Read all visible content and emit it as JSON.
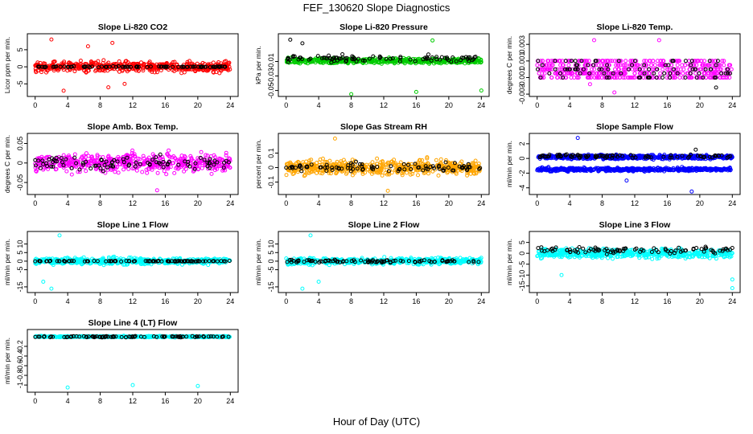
{
  "page": {
    "title": "FEF_130620  Slope Diagnostics",
    "xlabel": "Hour of Day (UTC)"
  },
  "chart_data": [
    {
      "type": "scatter",
      "title": "Slope Li-820 CO2",
      "ylabel": "Licor ppm per min.",
      "color": "#ff0000",
      "xlim": [
        0,
        24
      ],
      "ylim": [
        -8,
        9
      ],
      "yticks": [
        -5,
        0,
        5
      ],
      "xticks": [
        0,
        4,
        8,
        12,
        16,
        20,
        24
      ],
      "series": [
        {
          "name": "slopes",
          "color": "#ff0000",
          "center": 0,
          "spread": 3.2,
          "outliers": [
            [
              2,
              8
            ],
            [
              6.5,
              6
            ],
            [
              9.5,
              7
            ],
            [
              3.5,
              -7
            ],
            [
              9,
              -6
            ],
            [
              11,
              -5
            ]
          ]
        },
        {
          "name": "black",
          "color": "#000000",
          "center": 0,
          "spread": 0.3,
          "outliers": []
        }
      ]
    },
    {
      "type": "scatter",
      "title": "Slope Li-820 Pressure",
      "ylabel": "kPa per min.",
      "color": "#00cc00",
      "xlim": [
        0,
        24
      ],
      "ylim": [
        -0.055,
        0.025
      ],
      "yticks": [
        -0.05,
        -0.03,
        -0.01
      ],
      "xticks": [
        0,
        4,
        8,
        12,
        16,
        20,
        24
      ],
      "series": [
        {
          "name": "slopes",
          "color": "#00cc00",
          "center": -0.009,
          "spread": 0.008,
          "outliers": [
            [
              8,
              -0.055
            ],
            [
              16,
              -0.052
            ],
            [
              24,
              -0.05
            ],
            [
              18,
              0.019
            ]
          ]
        },
        {
          "name": "black",
          "color": "#000000",
          "center": -0.006,
          "spread": 0.009,
          "outliers": [
            [
              0.5,
              0.02
            ],
            [
              2,
              0.015
            ]
          ]
        }
      ]
    },
    {
      "type": "scatter",
      "title": "Slope Li-820 Temp.",
      "ylabel": "degrees C per min.",
      "color": "#ff00ff",
      "xlim": [
        0,
        24
      ],
      "ylim": [
        -0.003,
        0.004
      ],
      "yticks": [
        -0.003,
        -0.001,
        0.001,
        0.003
      ],
      "xticks": [
        0,
        4,
        8,
        12,
        16,
        20,
        24
      ],
      "series": [
        {
          "name": "slopes",
          "color": "#ff00ff",
          "center": 0,
          "spread": 0.0012,
          "levels": [
            -0.001,
            -0.0005,
            0,
            0.0005,
            0.001
          ],
          "outliers": [
            [
              7,
              0.0035
            ],
            [
              15,
              0.0035
            ],
            [
              9.5,
              -0.0028
            ],
            [
              6.5,
              -0.0018
            ]
          ]
        },
        {
          "name": "black",
          "color": "#000000",
          "center": 0,
          "spread": 0.0008,
          "levels": [
            -0.001,
            -0.0005,
            0,
            0.0005,
            0.001
          ],
          "outliers": [
            [
              22,
              -0.0022
            ]
          ]
        }
      ]
    },
    {
      "type": "scatter",
      "title": "Slope Amb. Box Temp.",
      "ylabel": "degrees C per min.",
      "color": "#ff00ff",
      "xlim": [
        0,
        24
      ],
      "ylim": [
        -0.075,
        0.07
      ],
      "yticks": [
        -0.05,
        0,
        0.05
      ],
      "xticks": [
        0,
        4,
        8,
        12,
        16,
        20,
        24
      ],
      "series": [
        {
          "name": "slopes",
          "color": "#ff00ff",
          "center": 0,
          "spread": 0.05,
          "outliers": [
            [
              15,
              -0.07
            ]
          ]
        },
        {
          "name": "black",
          "color": "#000000",
          "center": 0,
          "spread": 0.035,
          "outliers": []
        }
      ]
    },
    {
      "type": "scatter",
      "title": "Slope Gas Stream RH",
      "ylabel": "percent per min.",
      "color": "#ffa500",
      "xlim": [
        0,
        24
      ],
      "ylim": [
        -0.17,
        0.22
      ],
      "yticks": [
        -0.1,
        0,
        0.1
      ],
      "xticks": [
        0,
        4,
        8,
        12,
        16,
        20,
        24
      ],
      "series": [
        {
          "name": "slopes",
          "color": "#ffa500",
          "center": 0,
          "spread": 0.11,
          "outliers": [
            [
              6,
              0.2
            ],
            [
              12.5,
              -0.16
            ]
          ]
        },
        {
          "name": "black",
          "color": "#000000",
          "center": 0,
          "spread": 0.06,
          "outliers": []
        }
      ]
    },
    {
      "type": "scatter",
      "title": "Slope Sample Flow",
      "ylabel": "ml/min per min.",
      "color": "#0000ff",
      "xlim": [
        0,
        24
      ],
      "ylim": [
        -4.6,
        3.1
      ],
      "yticks": [
        -4,
        -2,
        0,
        2
      ],
      "xticks": [
        0,
        4,
        8,
        12,
        16,
        20,
        24
      ],
      "series": [
        {
          "name": "slopes-upper",
          "color": "#0000ff",
          "center": 0.2,
          "spread": 0.6,
          "outliers": [
            [
              5,
              2.8
            ],
            [
              19,
              -4.5
            ],
            [
              11,
              -3
            ]
          ]
        },
        {
          "name": "slopes-lower",
          "color": "#0000ff",
          "center": -1.5,
          "spread": 0.5,
          "outliers": []
        },
        {
          "name": "black",
          "color": "#000000",
          "center": 0.3,
          "spread": 0.5,
          "outliers": [
            [
              19.5,
              1.2
            ]
          ]
        }
      ]
    },
    {
      "type": "scatter",
      "title": "Slope Line 1 Flow",
      "ylabel": "ml/min per min.",
      "color": "#00ffff",
      "xlim": [
        0,
        24
      ],
      "ylim": [
        -17,
        16
      ],
      "yticks": [
        -15,
        -5,
        0,
        5,
        10
      ],
      "xticks": [
        0,
        4,
        8,
        12,
        16,
        20,
        24
      ],
      "series": [
        {
          "name": "slopes",
          "color": "#00ffff",
          "center": 0,
          "spread": 4,
          "outliers": [
            [
              3,
              15
            ],
            [
              2,
              -16
            ],
            [
              1,
              -12
            ]
          ]
        },
        {
          "name": "black",
          "color": "#000000",
          "center": 0,
          "spread": 0.5,
          "outliers": []
        }
      ]
    },
    {
      "type": "scatter",
      "title": "Slope Line 2 Flow",
      "ylabel": "ml/min per min.",
      "color": "#00ffff",
      "xlim": [
        0,
        24
      ],
      "ylim": [
        -17,
        16
      ],
      "yticks": [
        -15,
        -5,
        0,
        5,
        10
      ],
      "xticks": [
        0,
        4,
        8,
        12,
        16,
        20,
        24
      ],
      "series": [
        {
          "name": "slopes",
          "color": "#00ffff",
          "center": 0,
          "spread": 4,
          "outliers": [
            [
              3,
              15
            ],
            [
              2,
              -16
            ],
            [
              4,
              -12
            ]
          ]
        },
        {
          "name": "black",
          "color": "#000000",
          "center": 0,
          "spread": 2,
          "outliers": []
        }
      ]
    },
    {
      "type": "scatter",
      "title": "Slope Line 3 Flow",
      "ylabel": "ml/min per min.",
      "color": "#00ffff",
      "xlim": [
        0,
        24
      ],
      "ylim": [
        -17,
        9
      ],
      "yticks": [
        -15,
        -10,
        -5,
        0,
        5
      ],
      "xticks": [
        0,
        4,
        8,
        12,
        16,
        20,
        24
      ],
      "series": [
        {
          "name": "slopes",
          "color": "#00ffff",
          "center": 0,
          "spread": 4.5,
          "outliers": [
            [
              24,
              -16
            ],
            [
              3,
              -10
            ],
            [
              24,
              -12
            ]
          ]
        },
        {
          "name": "black",
          "color": "#000000",
          "center": 1.5,
          "spread": 3,
          "outliers": []
        }
      ]
    },
    {
      "type": "scatter",
      "title": "Slope Line 4 (LT) Flow",
      "ylabel": "ml/min per min.",
      "color": "#00ffff",
      "xlim": [
        0,
        24
      ],
      "ylim": [
        -1.1,
        0.1
      ],
      "yticks": [
        -1.0,
        -0.8,
        -0.6,
        -0.4,
        -0.2
      ],
      "xticks": [
        0,
        4,
        8,
        12,
        16,
        20,
        24
      ],
      "series": [
        {
          "name": "slopes",
          "color": "#00ffff",
          "center": 0,
          "spread": 0.03,
          "outliers": [
            [
              4,
              -1.05
            ],
            [
              12,
              -1.0
            ],
            [
              20,
              -1.02
            ]
          ]
        },
        {
          "name": "black",
          "color": "#000000",
          "center": 0,
          "spread": 0.03,
          "outliers": []
        }
      ]
    }
  ]
}
